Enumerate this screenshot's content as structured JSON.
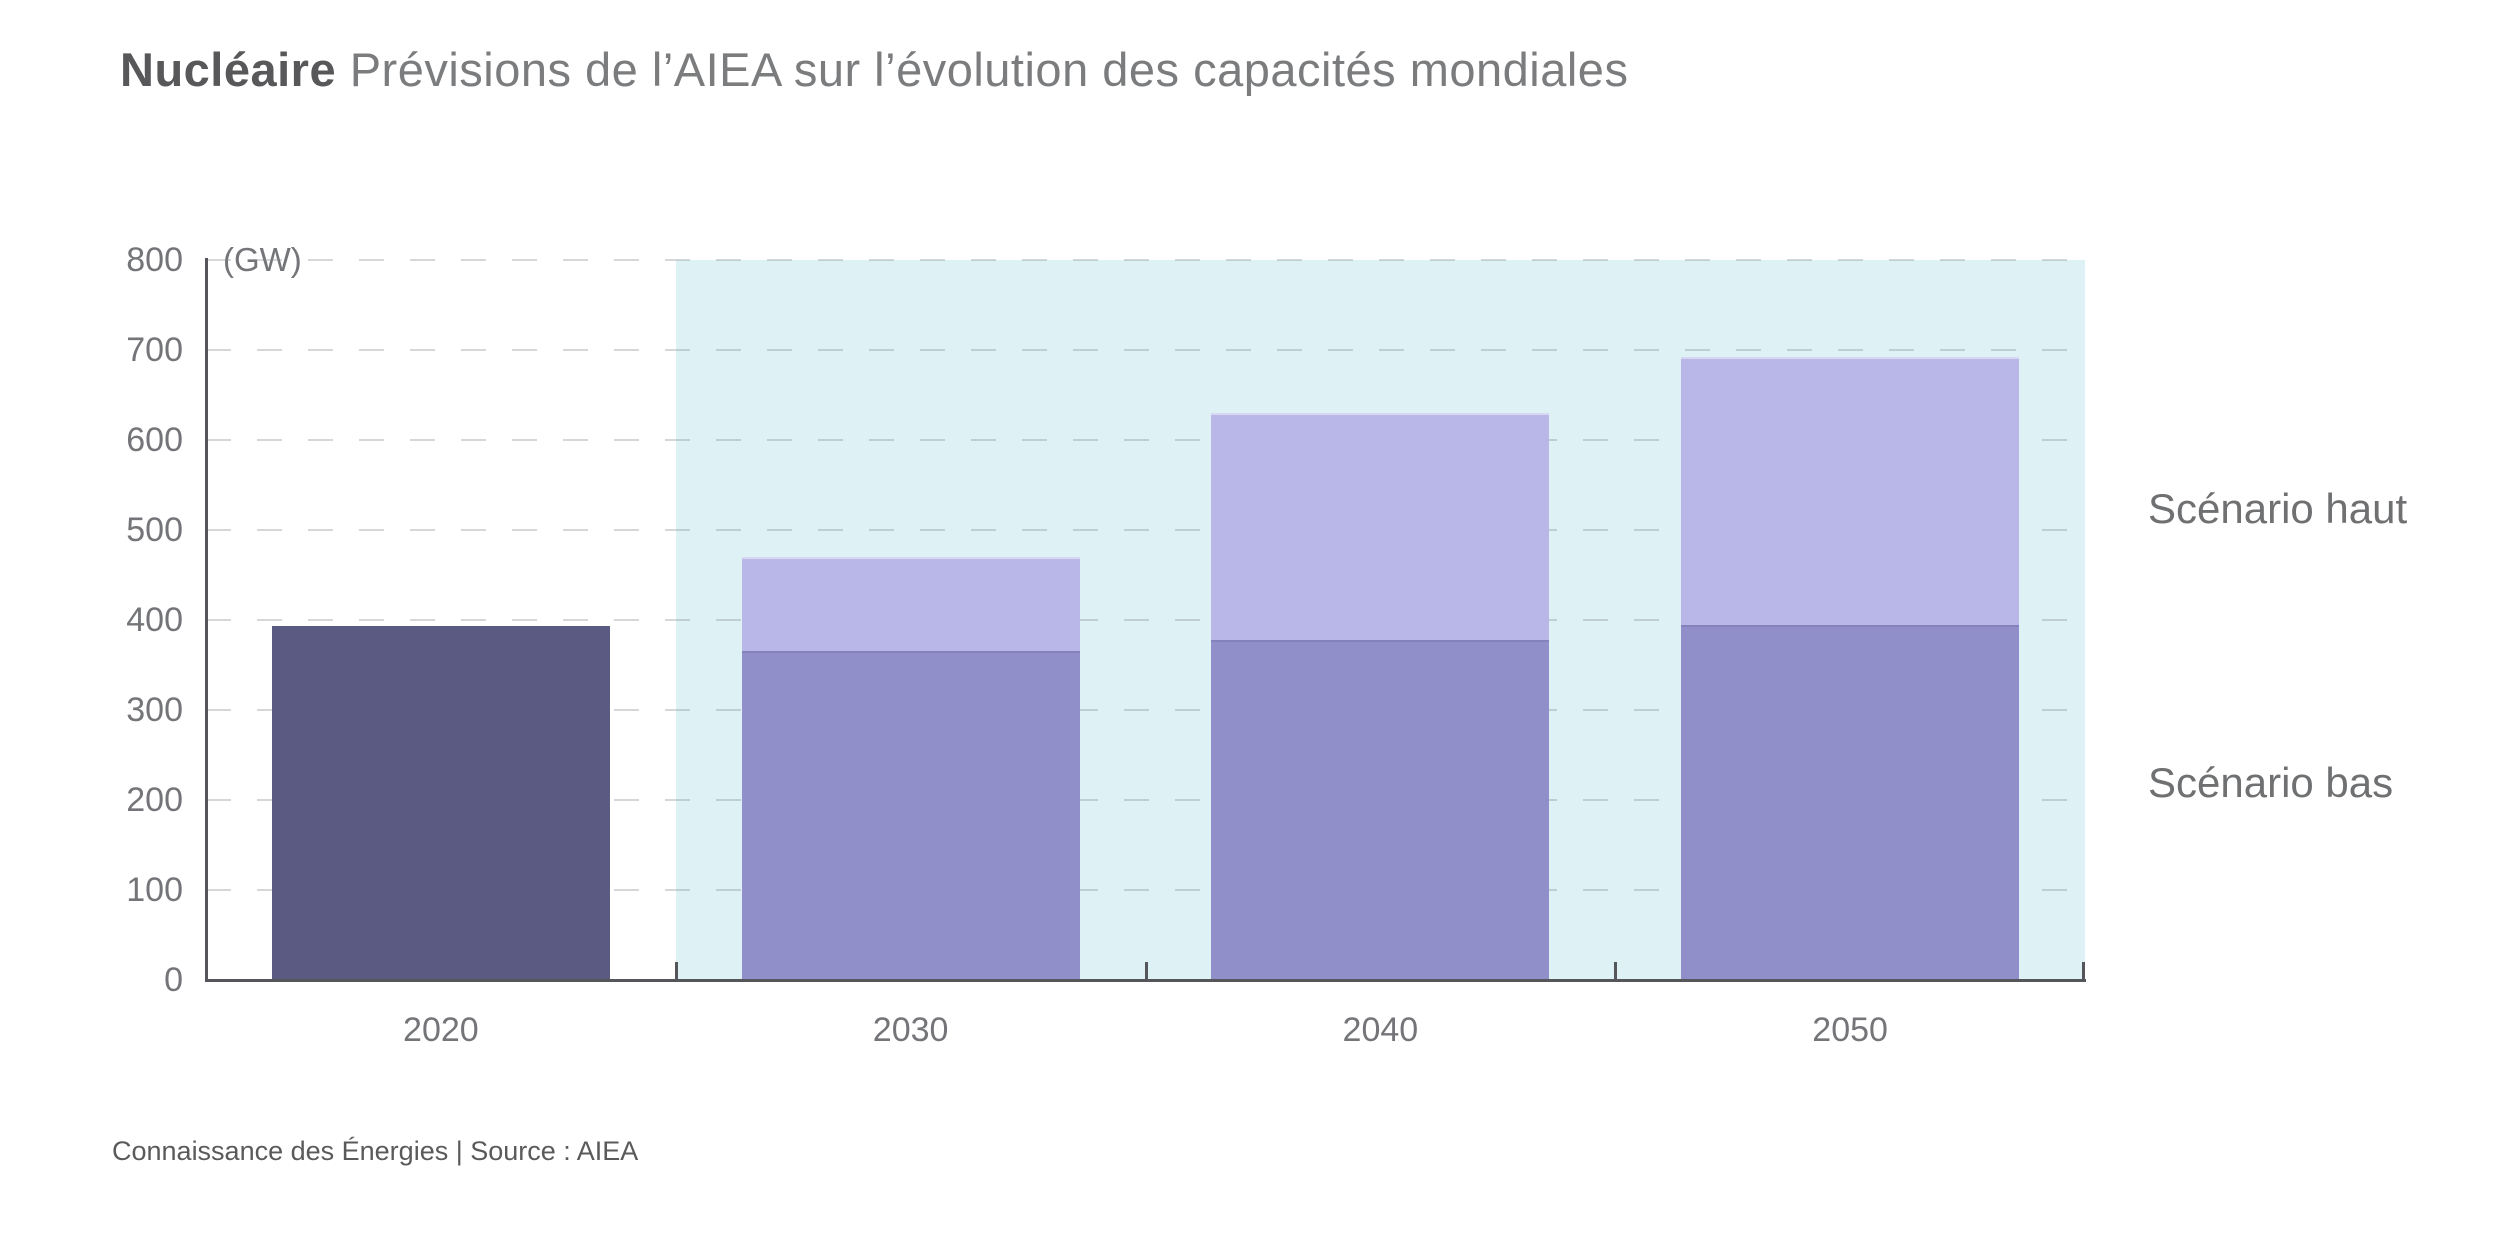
{
  "header": {
    "title_bold": "Nucléaire",
    "title_rest": "Prévisions de l’AIEA sur l’évolution des capacités mondiales"
  },
  "footer": {
    "credit": "Connaissance des Énergies | Source : AIEA"
  },
  "chart_data": {
    "type": "bar",
    "title": "Nucléaire — Prévisions de l’AIEA sur l’évolution des capacités mondiales",
    "unit_label": "(GW)",
    "xlabel": "",
    "ylabel": "(GW)",
    "categories": [
      "2020",
      "2030",
      "2040",
      "2050"
    ],
    "historical": {
      "category": "2020",
      "value": 393
    },
    "series": [
      {
        "name": "Scénario haut",
        "values": [
          null,
          470,
          630,
          692
        ],
        "color": "#b8b7e8"
      },
      {
        "name": "Scénario bas",
        "values": [
          null,
          366,
          378,
          394
        ],
        "color": "#908fc9"
      }
    ],
    "ylim": [
      0,
      800
    ],
    "ytick_labels": [
      "0",
      "100",
      "200",
      "300",
      "400",
      "500",
      "600",
      "700",
      "800"
    ],
    "grid": "horizontal-dashed",
    "legend_position": "right",
    "forecast_zone": {
      "start_category": "2030",
      "background": "#def2f6"
    },
    "colors": {
      "historical_bar": "#5b5a83",
      "axis": "#55565a",
      "grid": "rgba(125,130,135,0.32)",
      "tick_text": "#747578",
      "legend_text": "#6f7072",
      "title_bold": "#58585a",
      "title_light": "#7b7c7e"
    }
  }
}
